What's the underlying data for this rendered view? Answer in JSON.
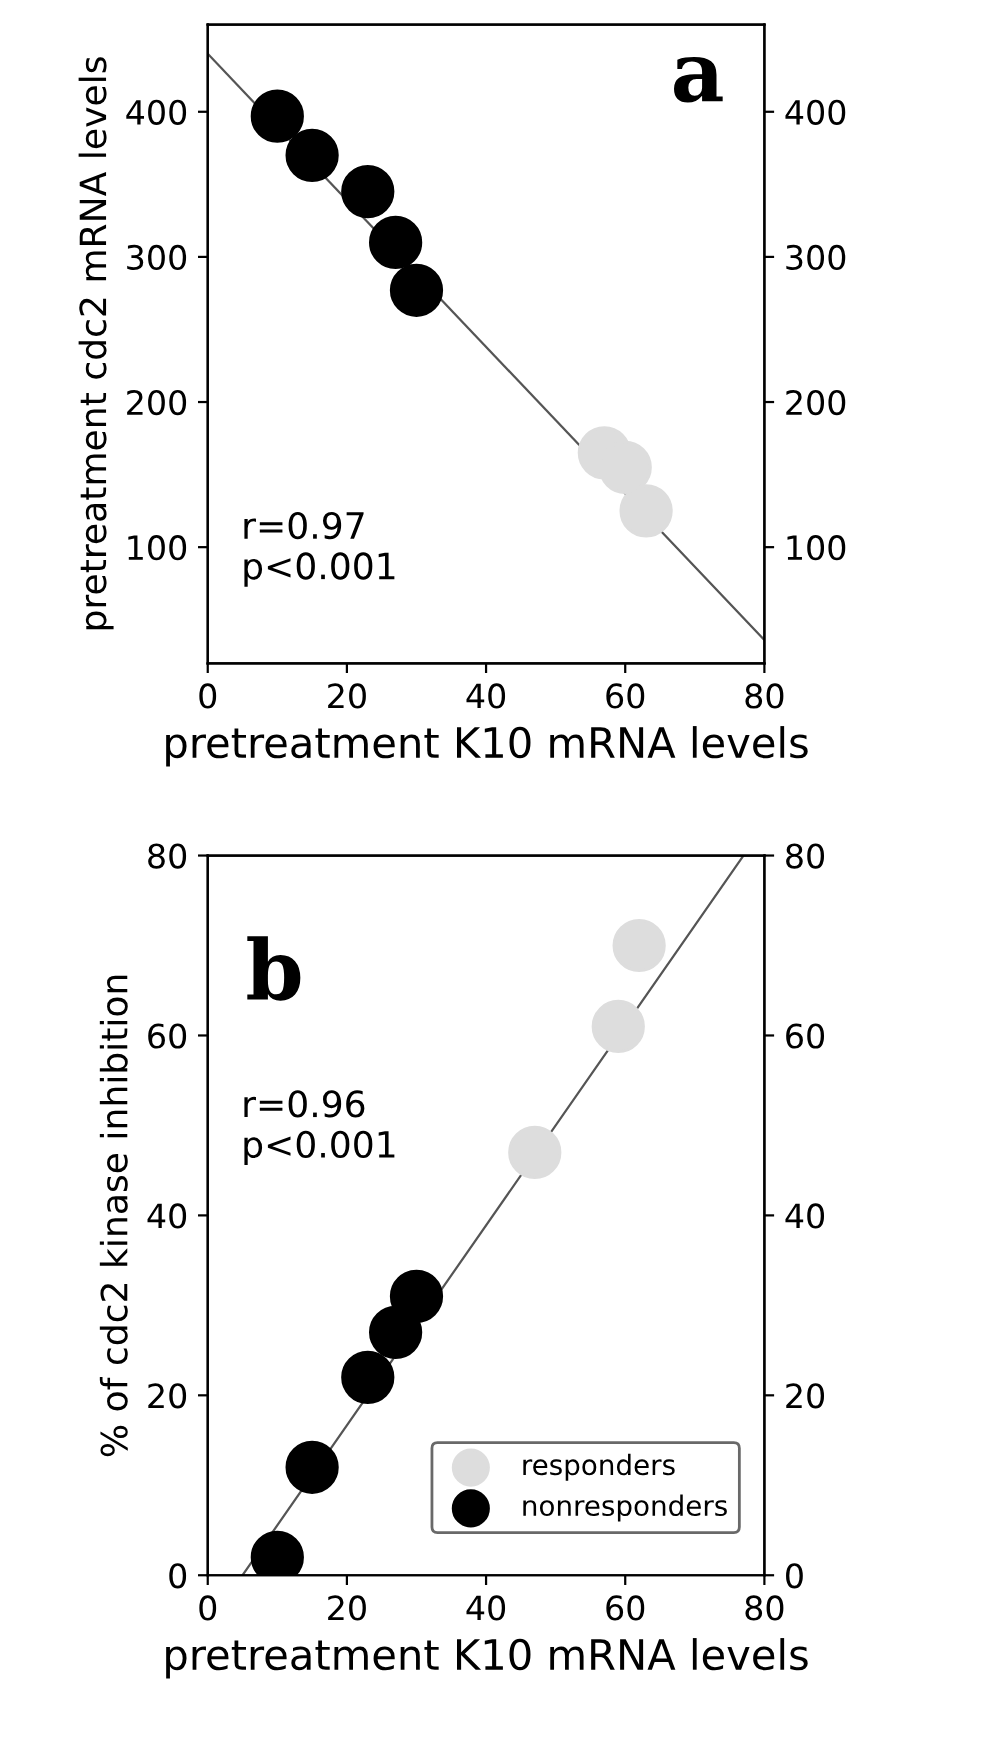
{
  "chart_data": [
    {
      "type": "scatter",
      "title": "a",
      "xlabel": "pretreatment K10 mRNA levels",
      "ylabel": "pretreatment cdc2 mRNA levels",
      "xlim": [
        0,
        80
      ],
      "ylim": [
        20,
        460
      ],
      "xticks": [
        0,
        20,
        40,
        60,
        80
      ],
      "yticks": [
        100,
        200,
        300,
        400
      ],
      "y2lim": [
        20,
        460
      ],
      "y2ticks": [
        100,
        200,
        300,
        400
      ],
      "legend": false,
      "grid": false,
      "annotations": [
        "r=0.97\np<0.001"
      ],
      "series": [
        {
          "type": "line",
          "marker": "none",
          "color": "#555555",
          "x": [
            0,
            80
          ],
          "values": [
            440,
            36
          ]
        },
        {
          "marker": "circle",
          "color": "#dddddd",
          "x": [
            57,
            60,
            63
          ],
          "values": [
            165,
            155,
            125
          ]
        },
        {
          "marker": "circle",
          "color": "#000000",
          "x": [
            10,
            15,
            23,
            27,
            30
          ],
          "values": [
            397,
            370,
            345,
            310,
            277
          ]
        }
      ]
    },
    {
      "type": "scatter",
      "title": "b",
      "xlabel": "pretreatment K10 mRNA levels",
      "ylabel": "% of cdc2 kinase inhibition",
      "xlim": [
        0,
        80
      ],
      "ylim": [
        0,
        80
      ],
      "xticks": [
        0,
        20,
        40,
        60,
        80
      ],
      "yticks": [
        0,
        20,
        40,
        60,
        80
      ],
      "y2lim": [
        0,
        80
      ],
      "y2ticks": [
        0,
        20,
        40,
        60,
        80
      ],
      "legend": "bottom right",
      "grid": false,
      "annotations": [
        "r=0.96\np<0.001"
      ],
      "series": [
        {
          "type": "line",
          "marker": "none",
          "color": "#555555",
          "x": [
            5,
            77
          ],
          "values": [
            0,
            80
          ]
        },
        {
          "marker": "circle",
          "name": "responders",
          "color": "#dddddd",
          "x": [
            47,
            59,
            62
          ],
          "values": [
            47,
            61,
            70
          ]
        },
        {
          "marker": "circle",
          "name": "nonresponders",
          "color": "#000000",
          "x": [
            10,
            15,
            23,
            27,
            30
          ],
          "values": [
            2,
            12,
            22,
            27,
            31
          ]
        }
      ]
    }
  ]
}
